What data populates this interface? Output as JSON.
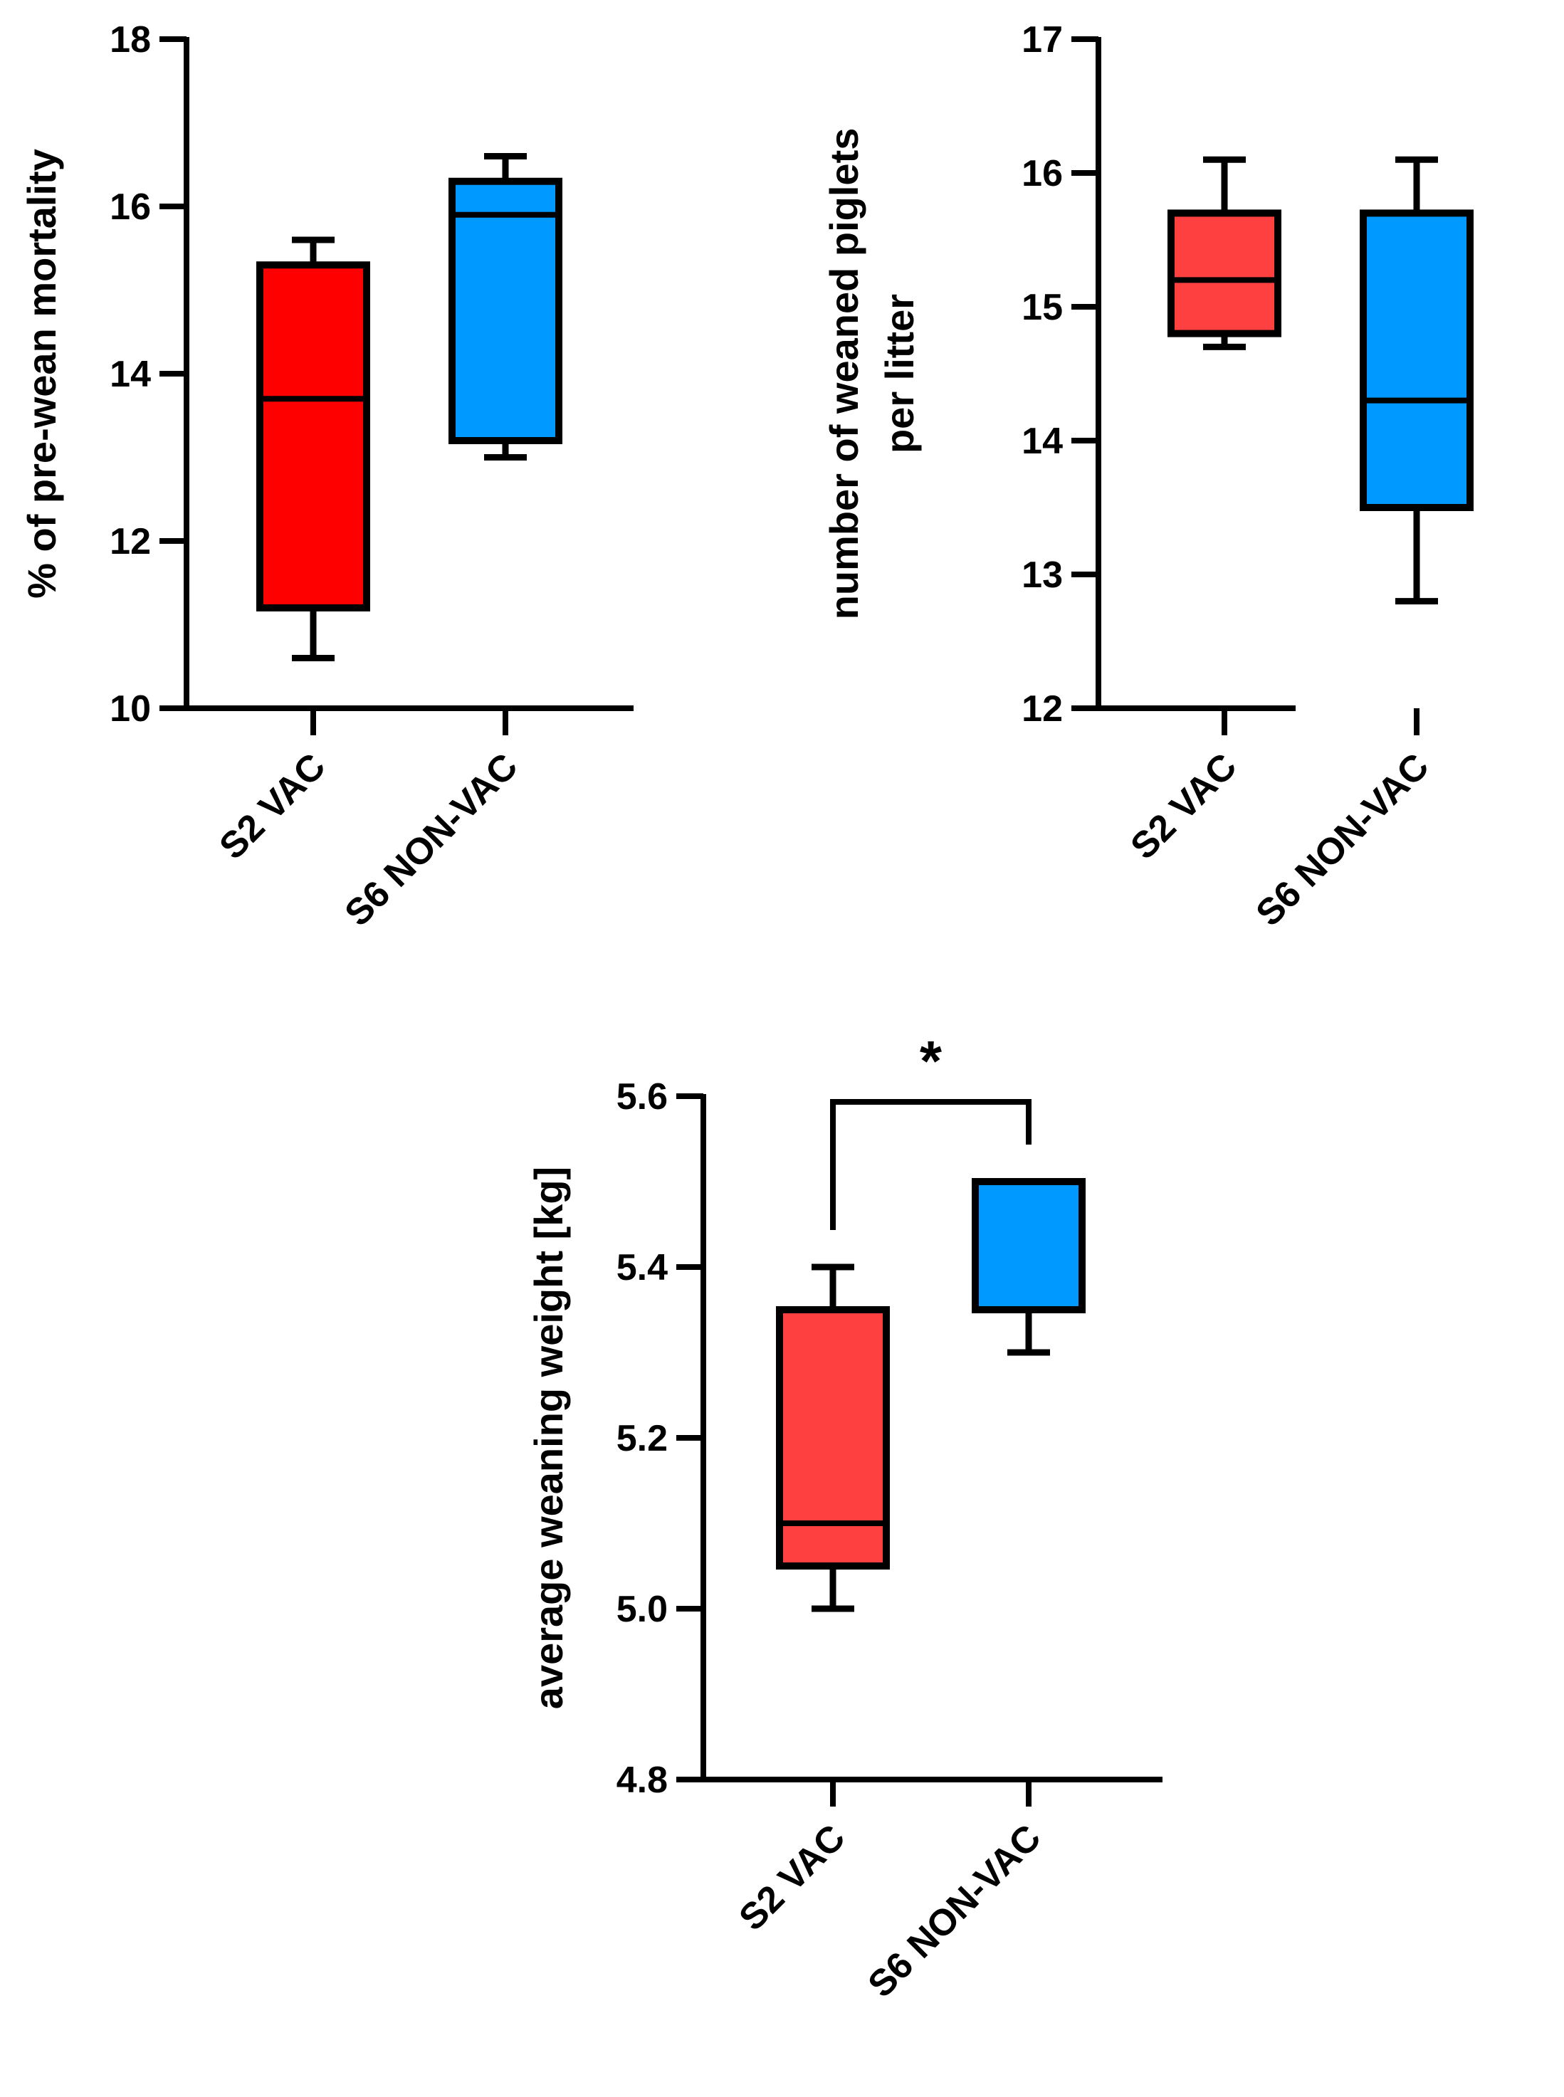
{
  "colors": {
    "vac": "#ff0000",
    "vac_light": "#ff4040",
    "nonvac": "#0099ff",
    "ink": "#000000"
  },
  "chart_data": [
    {
      "type": "box",
      "ylabel_lines": [
        "% of pre-wean mortality"
      ],
      "ylim": [
        10,
        18
      ],
      "yticks": [
        10,
        12,
        14,
        16,
        18
      ],
      "categories": [
        "S2 VAC",
        "S6 NON-VAC"
      ],
      "boxes": [
        {
          "name": "S2 VAC",
          "min": 10.6,
          "q1": 11.2,
          "median": 13.7,
          "q3": 15.3,
          "max": 15.6,
          "color": "#ff0000"
        },
        {
          "name": "S6 NON-VAC",
          "min": 13.0,
          "q1": 13.2,
          "median": 15.9,
          "q3": 16.3,
          "max": 16.6,
          "color": "#0099ff"
        }
      ]
    },
    {
      "type": "box",
      "ylabel_lines": [
        "number of weaned piglets",
        "per litter"
      ],
      "ylim": [
        12,
        17
      ],
      "yticks": [
        12,
        13,
        14,
        15,
        16,
        17
      ],
      "categories": [
        "S2 VAC",
        "S6 NON-VAC"
      ],
      "boxes": [
        {
          "name": "S2 VAC",
          "min": 14.7,
          "q1": 14.8,
          "median": 15.2,
          "q3": 15.7,
          "max": 16.1,
          "color": "#ff4040"
        },
        {
          "name": "S6 NON-VAC",
          "min": 12.8,
          "q1": 13.5,
          "median": 14.3,
          "q3": 15.7,
          "max": 16.1,
          "color": "#0099ff"
        }
      ]
    },
    {
      "type": "box",
      "ylabel_lines": [
        "average weaning weight [kg]"
      ],
      "ylim": [
        4.8,
        5.6
      ],
      "yticks": [
        "4.8",
        "5.0",
        "5.2",
        "5.4",
        "5.6"
      ],
      "categories": [
        "S2 VAC",
        "S6 NON-VAC"
      ],
      "boxes": [
        {
          "name": "S2 VAC",
          "min": 5.0,
          "q1": 5.05,
          "median": 5.1,
          "q3": 5.35,
          "max": 5.4,
          "color": "#ff4040"
        },
        {
          "name": "S6 NON-VAC",
          "min": 5.3,
          "q1": 5.35,
          "median": 5.5,
          "q3": 5.5,
          "max": 5.5,
          "color": "#0099ff"
        }
      ],
      "significance": {
        "label": "*",
        "between": [
          "S2 VAC",
          "S6 NON-VAC"
        ],
        "bracket_y": 5.6
      }
    }
  ]
}
